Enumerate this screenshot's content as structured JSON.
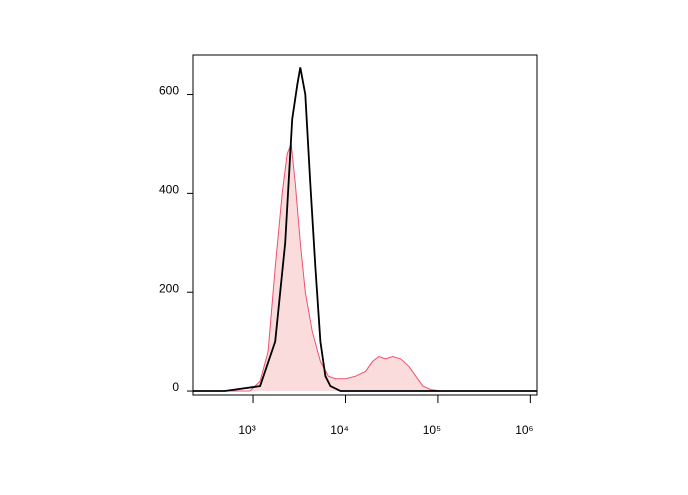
{
  "chart_data": {
    "type": "histogram-line",
    "xscale": "log",
    "xlim": [
      224,
      1180000
    ],
    "ylim": [
      -8,
      680
    ],
    "xticks": [
      {
        "value": 1000,
        "label": "10³"
      },
      {
        "value": 10000,
        "label": "10⁴"
      },
      {
        "value": 100000,
        "label": "10⁵"
      },
      {
        "value": 1000000,
        "label": "10⁶"
      }
    ],
    "yticks": [
      0,
      200,
      400,
      600
    ],
    "series": [
      {
        "color": "#f0506e",
        "fill": "#fbdcdc",
        "x": [
          224,
          927,
          1192,
          1456,
          1734,
          2066,
          2342,
          2588,
          2862,
          3243,
          3675,
          4377,
          5348,
          6531,
          7786,
          10000,
          12850,
          16490,
          19650,
          22850,
          27220,
          32430,
          39630,
          48420,
          57670,
          68710,
          83950,
          107800,
          1180000
        ],
        "values": [
          0,
          0,
          20,
          80,
          250,
          400,
          480,
          500,
          420,
          300,
          200,
          120,
          60,
          30,
          25,
          25,
          30,
          40,
          60,
          70,
          65,
          70,
          65,
          50,
          30,
          10,
          3,
          0,
          0
        ]
      },
      {
        "color": "#000000",
        "x": [
          224,
          496,
          1192,
          1734,
          2228,
          2654,
          3008,
          3243,
          3675,
          4166,
          4720,
          5348,
          6063,
          6870,
          8826,
          1180000
        ],
        "values": [
          0,
          0,
          10,
          100,
          300,
          550,
          620,
          655,
          600,
          420,
          250,
          100,
          30,
          10,
          0,
          0
        ]
      }
    ]
  }
}
